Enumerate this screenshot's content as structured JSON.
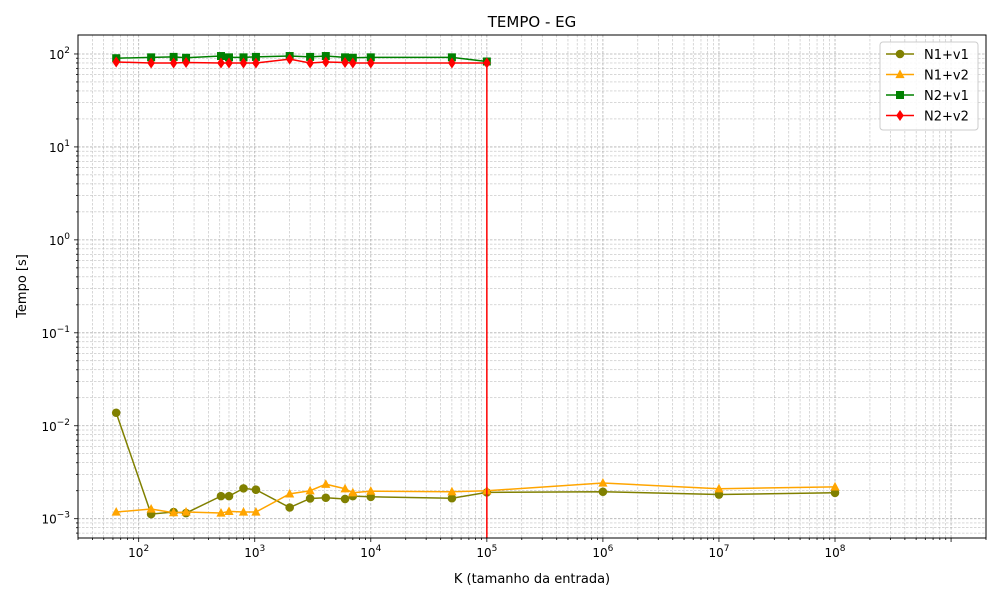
{
  "chart_data": {
    "type": "line",
    "title": "TEMPO - EG",
    "xlabel": "K (tamanho da entrada)",
    "ylabel": "Tempo [s]",
    "xscale": "log",
    "yscale": "log",
    "xlim": [
      30,
      2000000000
    ],
    "ylim": [
      0.00062,
      160
    ],
    "x_tick_labels": [
      {
        "value": 100,
        "base": "10",
        "exp": "2"
      },
      {
        "value": 1000,
        "base": "10",
        "exp": "3"
      },
      {
        "value": 10000,
        "base": "10",
        "exp": "4"
      },
      {
        "value": 100000,
        "base": "10",
        "exp": "5"
      },
      {
        "value": 1000000,
        "base": "10",
        "exp": "6"
      },
      {
        "value": 10000000,
        "base": "10",
        "exp": "7"
      },
      {
        "value": 100000000,
        "base": "10",
        "exp": "8"
      }
    ],
    "y_tick_labels": [
      {
        "value": 0.001,
        "base": "10",
        "exp": "−3"
      },
      {
        "value": 0.01,
        "base": "10",
        "exp": "−2"
      },
      {
        "value": 0.1,
        "base": "10",
        "exp": "−1"
      },
      {
        "value": 1,
        "base": "10",
        "exp": "0"
      },
      {
        "value": 10,
        "base": "10",
        "exp": "1"
      },
      {
        "value": 100,
        "base": "10",
        "exp": "2"
      }
    ],
    "grid": true,
    "legend_position": "top-right",
    "series": [
      {
        "name": "N1+v1",
        "color": "#808000",
        "marker": "circle",
        "x": [
          64,
          128,
          200,
          256,
          512,
          600,
          800,
          1024,
          2000,
          3000,
          4096,
          6000,
          7000,
          10000,
          50000,
          100000,
          1000000,
          10000000,
          100000000
        ],
        "y": [
          0.0138,
          0.00112,
          0.00118,
          0.00115,
          0.00175,
          0.00175,
          0.00212,
          0.00205,
          0.00132,
          0.00165,
          0.00168,
          0.00163,
          0.00175,
          0.00172,
          0.00166,
          0.00192,
          0.00195,
          0.00182,
          0.0019
        ]
      },
      {
        "name": "N1+v2",
        "color": "#ffa500",
        "marker": "triangle",
        "x": [
          64,
          128,
          200,
          256,
          512,
          600,
          800,
          1024,
          2000,
          3000,
          4096,
          6000,
          7000,
          10000,
          50000,
          100000,
          1000000,
          10000000,
          100000000
        ],
        "y": [
          0.00118,
          0.00127,
          0.00116,
          0.00118,
          0.00115,
          0.0012,
          0.00118,
          0.00118,
          0.00185,
          0.002,
          0.00235,
          0.0021,
          0.0019,
          0.00198,
          0.00195,
          0.002,
          0.00242,
          0.0021,
          0.0022
        ]
      },
      {
        "name": "N2+v1",
        "color": "#008000",
        "marker": "square",
        "x": [
          64,
          128,
          200,
          256,
          512,
          600,
          800,
          1024,
          2000,
          3000,
          4096,
          6000,
          7000,
          10000,
          50000,
          100000
        ],
        "y": [
          90,
          92,
          93,
          91,
          95,
          92,
          92,
          93,
          95,
          93,
          95,
          92,
          91,
          92,
          92,
          83
        ]
      },
      {
        "name": "N2+v2",
        "color": "#ff0000",
        "marker": "diamond",
        "x": [
          64,
          128,
          200,
          256,
          512,
          600,
          800,
          1024,
          2000,
          3000,
          4096,
          6000,
          7000,
          10000,
          50000,
          100000,
          100000
        ],
        "y": [
          82,
          80,
          80,
          81,
          80,
          80,
          80,
          80,
          88,
          80,
          82,
          81,
          80,
          80,
          80,
          80,
          0.0001
        ]
      }
    ]
  }
}
